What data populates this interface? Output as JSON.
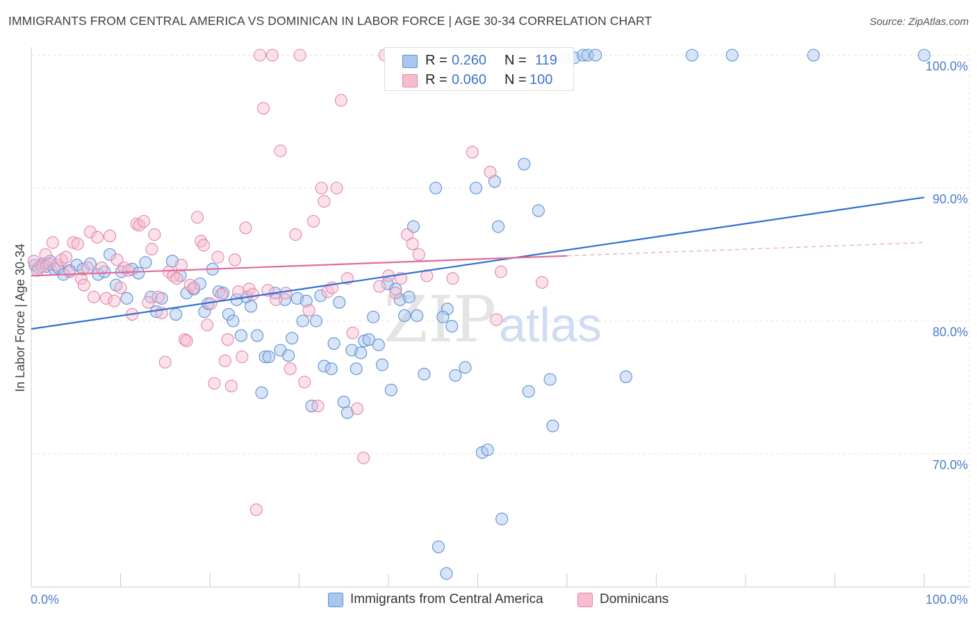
{
  "title": "IMMIGRANTS FROM CENTRAL AMERICA VS DOMINICAN IN LABOR FORCE | AGE 30-34 CORRELATION CHART",
  "source": "Source: ZipAtlas.com",
  "watermark": {
    "zip": "ZIP",
    "atlas": "atlas"
  },
  "legend": {
    "rows": [
      {
        "r_label": "R =",
        "r_value": "0.260",
        "n_label": "N =",
        "n_value": "119",
        "color": "#a9c6ee",
        "stroke": "#5b8fd6"
      },
      {
        "r_label": "R =",
        "r_value": "0.060",
        "n_label": "N =",
        "n_value": "100",
        "color": "#f6bcd0",
        "stroke": "#e585a7"
      }
    ]
  },
  "bottom_legend": [
    {
      "label": "Immigrants from Central America",
      "color": "#a9c6ee",
      "stroke": "#5b8fd6"
    },
    {
      "label": "Dominicans",
      "color": "#f6bcd0",
      "stroke": "#e585a7"
    }
  ],
  "chart_data": {
    "type": "scatter",
    "title": "IMMIGRANTS FROM CENTRAL AMERICA VS DOMINICAN IN LABOR FORCE | AGE 30-34 CORRELATION CHART",
    "xlabel": "",
    "ylabel": "In Labor Force | Age 30-34",
    "xlim": [
      0,
      100
    ],
    "ylim": [
      61,
      101.5
    ],
    "x_tick_labels": [
      "0.0%",
      "100.0%"
    ],
    "y_ticks": [
      70,
      80,
      90,
      100
    ],
    "y_tick_labels": [
      "70.0%",
      "80.0%",
      "90.0%",
      "100.0%"
    ],
    "grid": true,
    "legend_placement": "top-center",
    "series": [
      {
        "name": "Immigrants from Central America",
        "color": "#5b8fd6",
        "fill": "#a9c6ee",
        "trend": {
          "x": [
            0,
            100
          ],
          "y": [
            79.4,
            89.3
          ]
        },
        "points": [
          [
            0.4,
            84.2
          ],
          [
            0.8,
            84.0
          ],
          [
            1.3,
            84.3
          ],
          [
            1.7,
            84.1
          ],
          [
            2.1,
            84.5
          ],
          [
            2.6,
            83.9
          ],
          [
            3.0,
            84.0
          ],
          [
            3.6,
            83.5
          ],
          [
            4.3,
            83.8
          ],
          [
            5.1,
            84.2
          ],
          [
            5.8,
            83.9
          ],
          [
            6.6,
            84.3
          ],
          [
            7.5,
            83.5
          ],
          [
            8.2,
            83.7
          ],
          [
            8.8,
            85.0
          ],
          [
            9.5,
            82.7
          ],
          [
            10.1,
            83.7
          ],
          [
            10.7,
            81.7
          ],
          [
            11.3,
            83.9
          ],
          [
            12.0,
            83.6
          ],
          [
            12.8,
            84.4
          ],
          [
            13.4,
            81.8
          ],
          [
            14.0,
            80.7
          ],
          [
            14.6,
            81.7
          ],
          [
            15.8,
            84.5
          ],
          [
            16.2,
            80.5
          ],
          [
            16.7,
            83.4
          ],
          [
            17.4,
            82.1
          ],
          [
            18.2,
            82.4
          ],
          [
            18.9,
            82.8
          ],
          [
            19.4,
            80.7
          ],
          [
            19.8,
            81.3
          ],
          [
            20.3,
            83.9
          ],
          [
            21.0,
            82.2
          ],
          [
            21.5,
            82.1
          ],
          [
            22.1,
            80.5
          ],
          [
            22.6,
            80.0
          ],
          [
            23.0,
            81.6
          ],
          [
            23.5,
            78.9
          ],
          [
            24.1,
            81.8
          ],
          [
            24.6,
            81.1
          ],
          [
            25.3,
            78.9
          ],
          [
            25.8,
            74.6
          ],
          [
            26.2,
            77.3
          ],
          [
            26.6,
            77.3
          ],
          [
            27.3,
            82.1
          ],
          [
            27.9,
            77.8
          ],
          [
            28.4,
            81.6
          ],
          [
            28.8,
            77.4
          ],
          [
            29.2,
            78.7
          ],
          [
            29.8,
            81.7
          ],
          [
            30.4,
            80.0
          ],
          [
            30.8,
            81.5
          ],
          [
            31.4,
            73.6
          ],
          [
            31.9,
            80.0
          ],
          [
            32.4,
            81.9
          ],
          [
            32.8,
            76.6
          ],
          [
            33.6,
            76.4
          ],
          [
            33.9,
            78.3
          ],
          [
            34.5,
            81.4
          ],
          [
            35.0,
            73.9
          ],
          [
            35.4,
            73.1
          ],
          [
            35.9,
            77.8
          ],
          [
            36.4,
            76.4
          ],
          [
            36.9,
            77.6
          ],
          [
            37.3,
            78.5
          ],
          [
            37.8,
            78.6
          ],
          [
            38.3,
            80.3
          ],
          [
            38.9,
            78.2
          ],
          [
            39.3,
            76.7
          ],
          [
            39.9,
            82.8
          ],
          [
            40.3,
            74.8
          ],
          [
            40.8,
            82.4
          ],
          [
            41.3,
            81.6
          ],
          [
            41.8,
            80.4
          ],
          [
            42.3,
            81.8
          ],
          [
            42.8,
            87.1
          ],
          [
            43.2,
            80.4
          ],
          [
            44.0,
            76.0
          ],
          [
            45.6,
            63.0
          ],
          [
            46.5,
            61.0
          ],
          [
            45.3,
            90.0
          ],
          [
            46.6,
            80.9
          ],
          [
            47.1,
            79.6
          ],
          [
            46.1,
            80.3
          ],
          [
            47.5,
            75.9
          ],
          [
            48.6,
            76.5
          ],
          [
            49.8,
            90.0
          ],
          [
            50.5,
            70.1
          ],
          [
            51.1,
            70.3
          ],
          [
            51.9,
            90.5
          ],
          [
            52.3,
            87.1
          ],
          [
            52.7,
            65.1
          ],
          [
            54.0,
            99.8
          ],
          [
            55.7,
            74.7
          ],
          [
            55.2,
            91.8
          ],
          [
            56.8,
            88.3
          ],
          [
            58.1,
            75.6
          ],
          [
            58.4,
            72.1
          ],
          [
            59.6,
            99.8
          ],
          [
            60.8,
            99.8
          ],
          [
            61.8,
            100.0
          ],
          [
            62.3,
            100.0
          ],
          [
            63.2,
            100.0
          ],
          [
            66.6,
            75.8
          ],
          [
            74.0,
            100.0
          ],
          [
            78.5,
            100.0
          ],
          [
            87.6,
            100.0
          ],
          [
            100.0,
            100.0
          ]
        ]
      },
      {
        "name": "Dominicans",
        "color": "#e585a7",
        "fill": "#f6bcd0",
        "trend": {
          "x": [
            0,
            60
          ],
          "y": [
            83.4,
            84.9
          ]
        },
        "trend_extension": {
          "x": [
            60,
            100
          ],
          "y": [
            84.9,
            85.9
          ]
        },
        "points": [
          [
            0.3,
            84.5
          ],
          [
            0.7,
            83.8
          ],
          [
            1.2,
            84.1
          ],
          [
            1.6,
            85.0
          ],
          [
            2.0,
            84.3
          ],
          [
            2.4,
            85.9
          ],
          [
            2.9,
            84.2
          ],
          [
            3.4,
            84.6
          ],
          [
            3.9,
            84.8
          ],
          [
            4.3,
            83.7
          ],
          [
            4.7,
            85.9
          ],
          [
            5.2,
            85.8
          ],
          [
            5.6,
            83.2
          ],
          [
            5.9,
            82.7
          ],
          [
            6.3,
            84.0
          ],
          [
            6.6,
            86.7
          ],
          [
            7.0,
            81.8
          ],
          [
            7.4,
            86.3
          ],
          [
            7.9,
            84.0
          ],
          [
            8.4,
            81.7
          ],
          [
            8.8,
            86.4
          ],
          [
            9.3,
            81.5
          ],
          [
            9.6,
            84.6
          ],
          [
            10.0,
            82.5
          ],
          [
            10.4,
            84.0
          ],
          [
            10.9,
            83.8
          ],
          [
            11.3,
            80.5
          ],
          [
            11.8,
            87.3
          ],
          [
            12.1,
            87.2
          ],
          [
            12.6,
            87.5
          ],
          [
            13.1,
            81.4
          ],
          [
            13.5,
            85.4
          ],
          [
            13.8,
            86.5
          ],
          [
            14.2,
            81.8
          ],
          [
            14.6,
            80.6
          ],
          [
            15.0,
            76.9
          ],
          [
            15.4,
            83.7
          ],
          [
            15.9,
            83.4
          ],
          [
            16.3,
            83.2
          ],
          [
            16.8,
            84.2
          ],
          [
            17.2,
            78.6
          ],
          [
            17.4,
            78.5
          ],
          [
            17.8,
            82.7
          ],
          [
            18.2,
            82.5
          ],
          [
            18.6,
            87.8
          ],
          [
            19.0,
            86.0
          ],
          [
            19.3,
            85.7
          ],
          [
            19.7,
            79.7
          ],
          [
            20.1,
            81.3
          ],
          [
            20.5,
            75.3
          ],
          [
            20.9,
            84.8
          ],
          [
            21.3,
            82.0
          ],
          [
            21.7,
            77.0
          ],
          [
            22.0,
            78.6
          ],
          [
            22.4,
            75.1
          ],
          [
            22.8,
            84.6
          ],
          [
            23.2,
            82.2
          ],
          [
            23.6,
            77.3
          ],
          [
            24.0,
            87.0
          ],
          [
            24.4,
            82.4
          ],
          [
            24.8,
            82.0
          ],
          [
            25.2,
            65.8
          ],
          [
            25.6,
            100.0
          ],
          [
            26.0,
            96.0
          ],
          [
            26.5,
            82.3
          ],
          [
            27.0,
            100.0
          ],
          [
            27.4,
            81.6
          ],
          [
            27.9,
            92.8
          ],
          [
            28.5,
            82.1
          ],
          [
            29.0,
            76.4
          ],
          [
            29.6,
            86.5
          ],
          [
            30.1,
            100.0
          ],
          [
            30.6,
            75.4
          ],
          [
            31.1,
            80.8
          ],
          [
            31.6,
            87.5
          ],
          [
            32.1,
            73.6
          ],
          [
            32.5,
            90.0
          ],
          [
            32.8,
            89.0
          ],
          [
            33.2,
            82.2
          ],
          [
            33.7,
            82.5
          ],
          [
            34.2,
            90.0
          ],
          [
            34.7,
            96.6
          ],
          [
            35.4,
            83.2
          ],
          [
            36.0,
            79.1
          ],
          [
            36.5,
            73.4
          ],
          [
            37.2,
            69.7
          ],
          [
            39.0,
            82.6
          ],
          [
            39.6,
            100.0
          ],
          [
            40.0,
            83.4
          ],
          [
            40.8,
            82.1
          ],
          [
            41.4,
            83.2
          ],
          [
            42.1,
            86.5
          ],
          [
            42.7,
            85.8
          ],
          [
            43.4,
            85.0
          ],
          [
            44.3,
            83.4
          ],
          [
            47.2,
            83.2
          ],
          [
            49.4,
            92.7
          ],
          [
            51.4,
            91.2
          ],
          [
            52.1,
            80.1
          ],
          [
            52.6,
            83.7
          ],
          [
            57.2,
            82.9
          ]
        ]
      }
    ]
  }
}
